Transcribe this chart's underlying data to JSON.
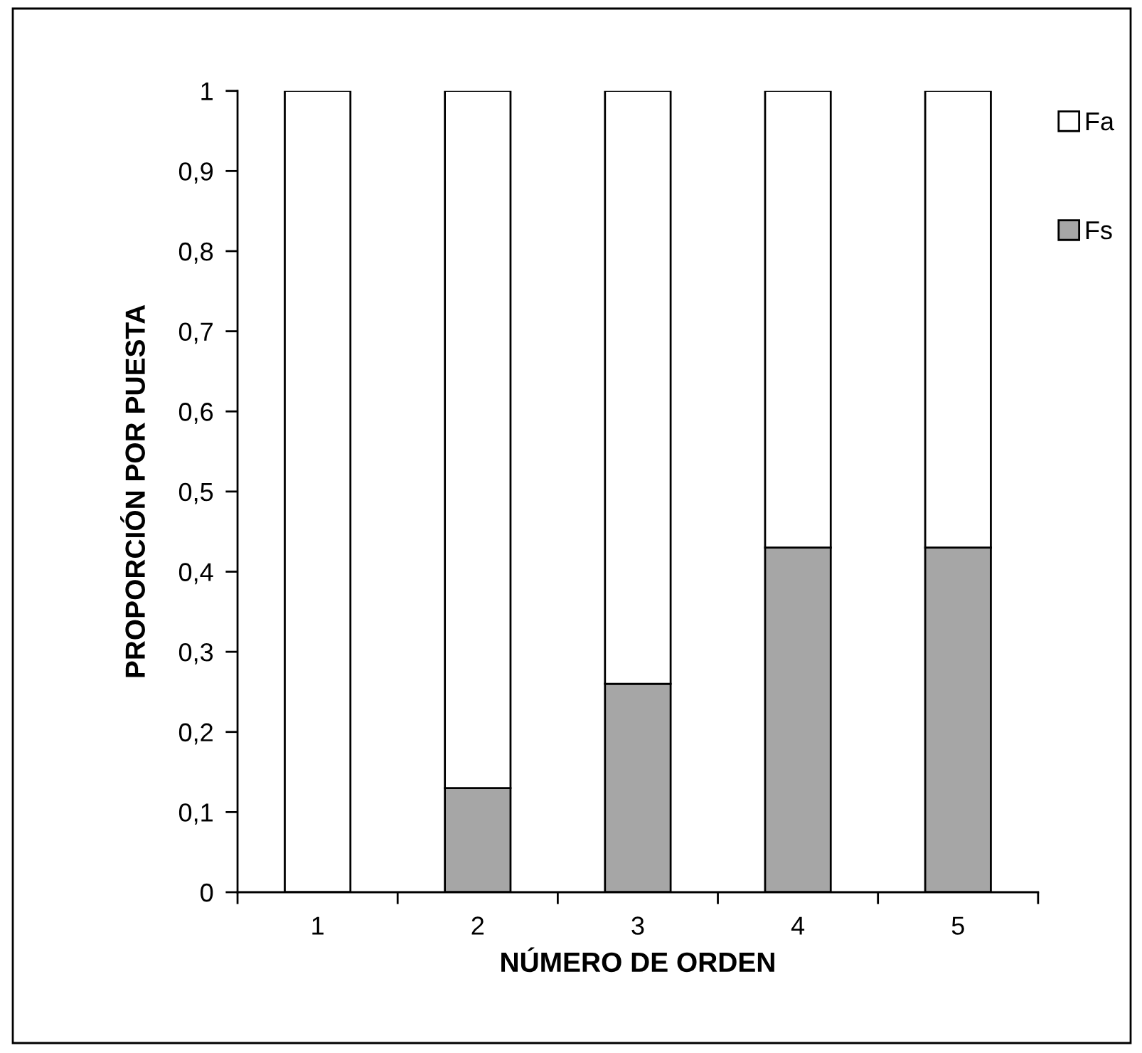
{
  "chart_data": {
    "type": "bar",
    "stacked": true,
    "xlabel": "NÚMERO DE ORDEN",
    "ylabel": "PROPORCIÓN POR PUESTA",
    "categories": [
      "1",
      "2",
      "3",
      "4",
      "5"
    ],
    "series": [
      {
        "name": "Fs",
        "color": "#a6a6a6",
        "values": [
          0,
          0.13,
          0.26,
          0.43,
          0.43
        ]
      },
      {
        "name": "Fa",
        "color": "#ffffff",
        "values": [
          1,
          0.87,
          0.74,
          0.57,
          0.57
        ]
      }
    ],
    "ylim": [
      0,
      1
    ],
    "yticks": [
      0,
      {
        "value": 0.1,
        "label": "0,1"
      },
      {
        "value": 0.2,
        "label": "0,2"
      },
      {
        "value": 0.3,
        "label": "0,3"
      },
      {
        "value": 0.4,
        "label": "0,4"
      },
      {
        "value": 0.5,
        "label": "0,5"
      },
      {
        "value": 0.6,
        "label": "0,6"
      },
      {
        "value": 0.7,
        "label": "0,7"
      },
      {
        "value": 0.8,
        "label": "0,8"
      },
      {
        "value": 0.9,
        "label": "0,9"
      },
      1
    ],
    "grid": false,
    "legend": "top right"
  }
}
